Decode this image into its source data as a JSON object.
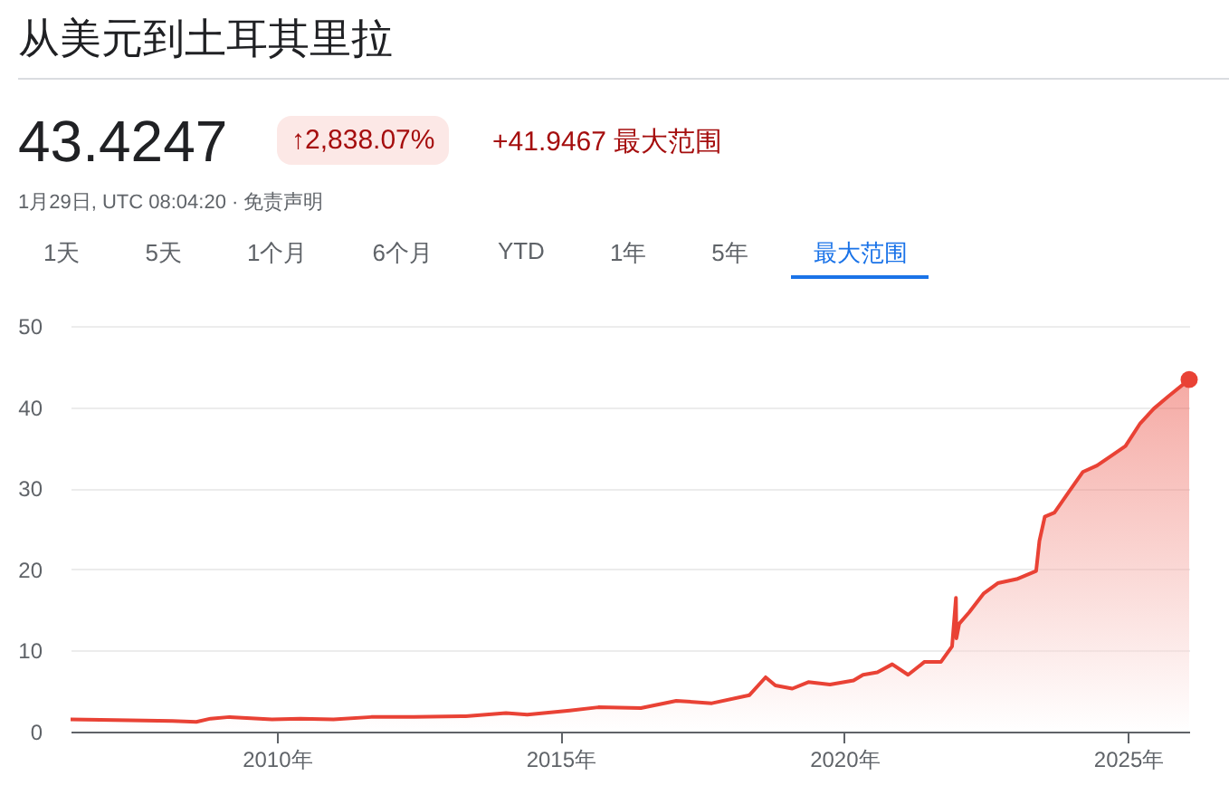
{
  "chart_data": {
    "type": "area",
    "title": "从美元到土耳其里拉",
    "subtitle": "43.4247",
    "annotations": [
      "↑2,838.07%",
      "+41.9467 最大范围",
      "1月29日, UTC 08:04:20 · 免责声明",
      "1天",
      "5天",
      "1个月",
      "6个月",
      "YTD",
      "1年",
      "5年",
      "最大范围"
    ],
    "xlim": [
      "2006-05-15",
      "2026-01-29"
    ],
    "xticks": [
      {
        "value": "2010-01-01",
        "label": "2010年"
      },
      {
        "value": "2015-01-01",
        "label": "2015年"
      },
      {
        "value": "2020-01-01",
        "label": "2020年"
      },
      {
        "value": "2025-01-01",
        "label": "2025年"
      }
    ],
    "ylim": [
      0,
      50
    ],
    "yticks": [
      0,
      10,
      20,
      30,
      40,
      50
    ],
    "grid": "y",
    "series": [
      {
        "color": "#e94235",
        "x": [
          "2006-05-15",
          "2007-06-01",
          "2008-03-01",
          "2008-08-01",
          "2008-11-01",
          "2009-03-01",
          "2009-12-01",
          "2010-06-01",
          "2011-01-01",
          "2011-09-01",
          "2012-06-01",
          "2013-05-01",
          "2014-01-15",
          "2014-06-01",
          "2015-03-01",
          "2015-09-01",
          "2016-06-01",
          "2017-01-15",
          "2017-09-01",
          "2018-05-01",
          "2018-08-13",
          "2018-10-15",
          "2019-02-01",
          "2019-05-15",
          "2019-10-01",
          "2020-03-01",
          "2020-05-01",
          "2020-08-01",
          "2020-11-05",
          "2021-02-15",
          "2021-06-01",
          "2021-09-15",
          "2021-11-25",
          "2021-12-20",
          "2021-12-23",
          "2022-01-10",
          "2022-03-15",
          "2022-06-15",
          "2022-09-15",
          "2023-01-15",
          "2023-05-20",
          "2023-06-10",
          "2023-07-15",
          "2023-09-15",
          "2023-12-15",
          "2024-03-15",
          "2024-06-15",
          "2024-09-15",
          "2024-12-15",
          "2025-03-20",
          "2025-06-15",
          "2025-09-15",
          "2026-01-29"
        ],
        "values": [
          1.5,
          1.4,
          1.3,
          1.2,
          1.6,
          1.8,
          1.5,
          1.6,
          1.5,
          1.8,
          1.8,
          1.9,
          2.3,
          2.1,
          2.6,
          3.0,
          2.9,
          3.8,
          3.5,
          4.5,
          6.7,
          5.7,
          5.3,
          6.1,
          5.8,
          6.3,
          7.0,
          7.3,
          8.3,
          7.0,
          8.6,
          8.6,
          10.5,
          16.5,
          11.5,
          13.3,
          14.7,
          17.0,
          18.3,
          18.8,
          19.8,
          23.5,
          26.5,
          27.0,
          29.5,
          32.0,
          32.8,
          34.0,
          35.2,
          38.0,
          39.8,
          41.3,
          43.4
        ]
      },
      {
        "type": "scatter",
        "color": "#e94235",
        "x": [
          "2026-01-29"
        ],
        "values": [
          43.4
        ]
      }
    ]
  }
}
